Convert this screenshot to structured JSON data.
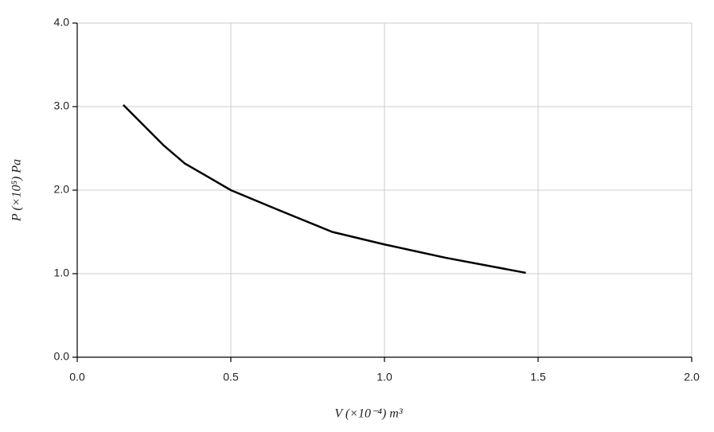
{
  "chart_data": {
    "type": "line",
    "xlabel": "V (×10⁻⁴) m³",
    "ylabel": "P (×10⁵) Pa",
    "x": [
      0.15,
      0.28,
      0.35,
      0.5,
      0.65,
      0.83,
      1.0,
      1.2,
      1.46
    ],
    "series": [
      {
        "color": "#000000",
        "values": [
          3.02,
          2.54,
          2.32,
          2.0,
          1.77,
          1.5,
          1.35,
          1.19,
          1.01
        ]
      }
    ],
    "xlim": [
      0,
      2
    ],
    "ylim": [
      0,
      4
    ],
    "xticks": [
      {
        "value": 0,
        "label": "0.0"
      },
      0.5,
      {
        "value": 1,
        "label": "1.0"
      },
      1.5,
      {
        "value": 2,
        "label": "2.0"
      }
    ],
    "yticks": [
      {
        "value": 0,
        "label": "0.0"
      },
      {
        "value": 1,
        "label": "1.0"
      },
      {
        "value": 2,
        "label": "2.0"
      },
      {
        "value": 3,
        "label": "3.0"
      },
      {
        "value": 4,
        "label": "4.0"
      }
    ],
    "grid": true
  }
}
